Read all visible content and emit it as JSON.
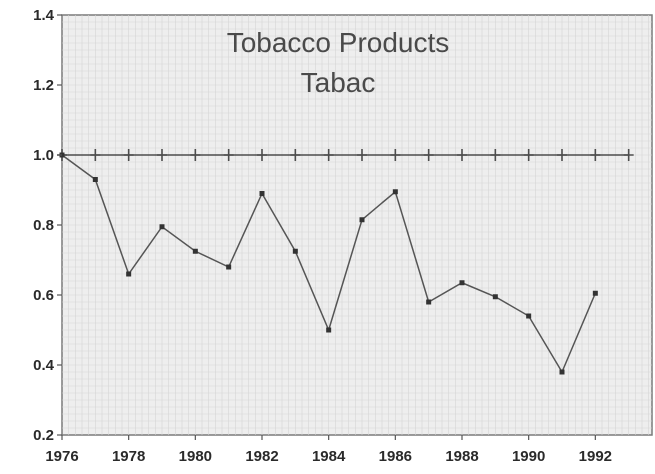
{
  "chart_data": {
    "type": "line",
    "title": "Tobacco Products",
    "subtitle": "Tabac",
    "xlabel": "",
    "ylabel": "",
    "xlim": [
      1976,
      1993.7
    ],
    "ylim": [
      0.2,
      1.4
    ],
    "x_ticks": [
      1976,
      1978,
      1980,
      1982,
      1984,
      1986,
      1988,
      1990,
      1992
    ],
    "y_ticks": [
      0.2,
      0.4,
      0.6,
      0.8,
      1.0,
      1.2,
      1.4
    ],
    "x_tick_labels": [
      "1976",
      "1978",
      "1980",
      "1982",
      "1984",
      "1986",
      "1988",
      "1990",
      "1992"
    ],
    "y_tick_labels": [
      "0.2",
      "0.4",
      "0.6",
      "0.8",
      "1.0",
      "1.2",
      "1.4"
    ],
    "grid": true,
    "series": [
      {
        "x": [
          1976,
          1977,
          1978,
          1979,
          1980,
          1981,
          1982,
          1983,
          1984,
          1985,
          1986,
          1987,
          1988,
          1989,
          1990,
          1991,
          1992
        ],
        "values": [
          1.0,
          0.93,
          0.66,
          0.795,
          0.725,
          0.68,
          0.89,
          0.725,
          0.5,
          0.815,
          0.895,
          0.58,
          0.635,
          0.595,
          0.54,
          0.38,
          0.605
        ]
      },
      {
        "x": [
          1976,
          1977,
          1978,
          1979,
          1980,
          1981,
          1982,
          1983,
          1984,
          1985,
          1986,
          1987,
          1988,
          1989,
          1990,
          1991,
          1992,
          1993
        ],
        "values": [
          1.0,
          1.0,
          1.0,
          1.0,
          1.0,
          1.0,
          1.0,
          1.0,
          1.0,
          1.0,
          1.0,
          1.0,
          1.0,
          1.0,
          1.0,
          1.0,
          1.0,
          1.0
        ],
        "marker": "plus"
      }
    ],
    "colors": {
      "background": "#eeeeee",
      "grid": "#d6d6d6",
      "line": "#555555",
      "reference_line": "#4d4d4d"
    }
  }
}
